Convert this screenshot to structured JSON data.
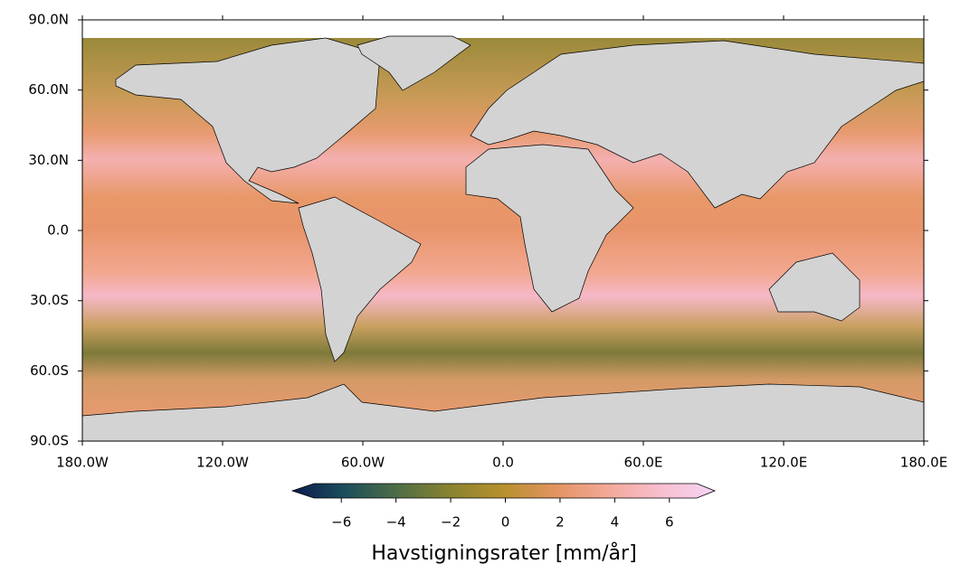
{
  "map": {
    "xlim": [
      -180,
      180
    ],
    "ylim": [
      -90,
      90
    ],
    "xticks": [
      {
        "value": -180,
        "label": "180.0W"
      },
      {
        "value": -120,
        "label": "120.0W"
      },
      {
        "value": -60,
        "label": "60.0W"
      },
      {
        "value": 0,
        "label": "0.0"
      },
      {
        "value": 60,
        "label": "60.0E"
      },
      {
        "value": 120,
        "label": "120.0E"
      },
      {
        "value": 180,
        "label": "180.0E"
      }
    ],
    "yticks": [
      {
        "value": 90,
        "label": "90.0N"
      },
      {
        "value": 60,
        "label": "60.0N"
      },
      {
        "value": 30,
        "label": "30.0N"
      },
      {
        "value": 0,
        "label": "0.0"
      },
      {
        "value": -30,
        "label": "30.0S"
      },
      {
        "value": -60,
        "label": "60.0S"
      },
      {
        "value": -90,
        "label": "90.0S"
      }
    ]
  },
  "colorbar": {
    "label": "Havstigningsrater [mm/år]",
    "lim": [
      -7,
      7
    ],
    "ticks": [
      {
        "value": -6,
        "label": "−6"
      },
      {
        "value": -4,
        "label": "−4"
      },
      {
        "value": -2,
        "label": "−2"
      },
      0,
      2,
      4,
      6
    ],
    "colors": [
      "#0b1a4f",
      "#1c4f5c",
      "#4f6e45",
      "#8a8330",
      "#b8902e",
      "#e39462",
      "#f3a99a",
      "#f8bfd0",
      "#f6d4f6"
    ]
  }
}
